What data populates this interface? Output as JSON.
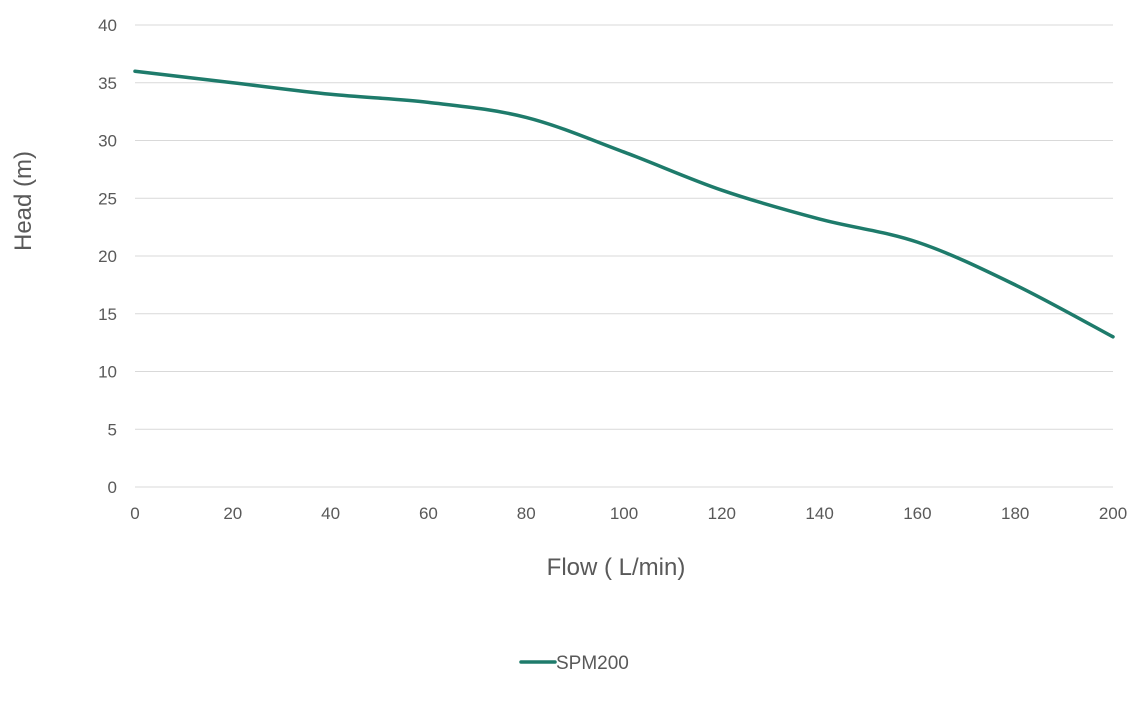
{
  "chart_data": {
    "type": "line",
    "title": "",
    "xlabel": "Flow ( L/min)",
    "ylabel": "Head (m)",
    "xlim": [
      0,
      200
    ],
    "ylim": [
      0,
      40
    ],
    "x_ticks": [
      "0",
      "20",
      "40",
      "60",
      "80",
      "100",
      "120",
      "140",
      "160",
      "180",
      "200"
    ],
    "y_ticks": [
      "0",
      "5",
      "10",
      "15",
      "20",
      "25",
      "30",
      "35",
      "40"
    ],
    "grid": "horizontal",
    "legend_position": "bottom",
    "series": [
      {
        "name": "SPM200",
        "color": "#1e7b6b",
        "smooth": true,
        "x": [
          0,
          20,
          40,
          60,
          80,
          100,
          120,
          140,
          160,
          180,
          200
        ],
        "y": [
          36,
          35,
          34,
          33.3,
          32,
          29,
          25.7,
          23.2,
          21.2,
          17.5,
          13
        ]
      }
    ]
  }
}
